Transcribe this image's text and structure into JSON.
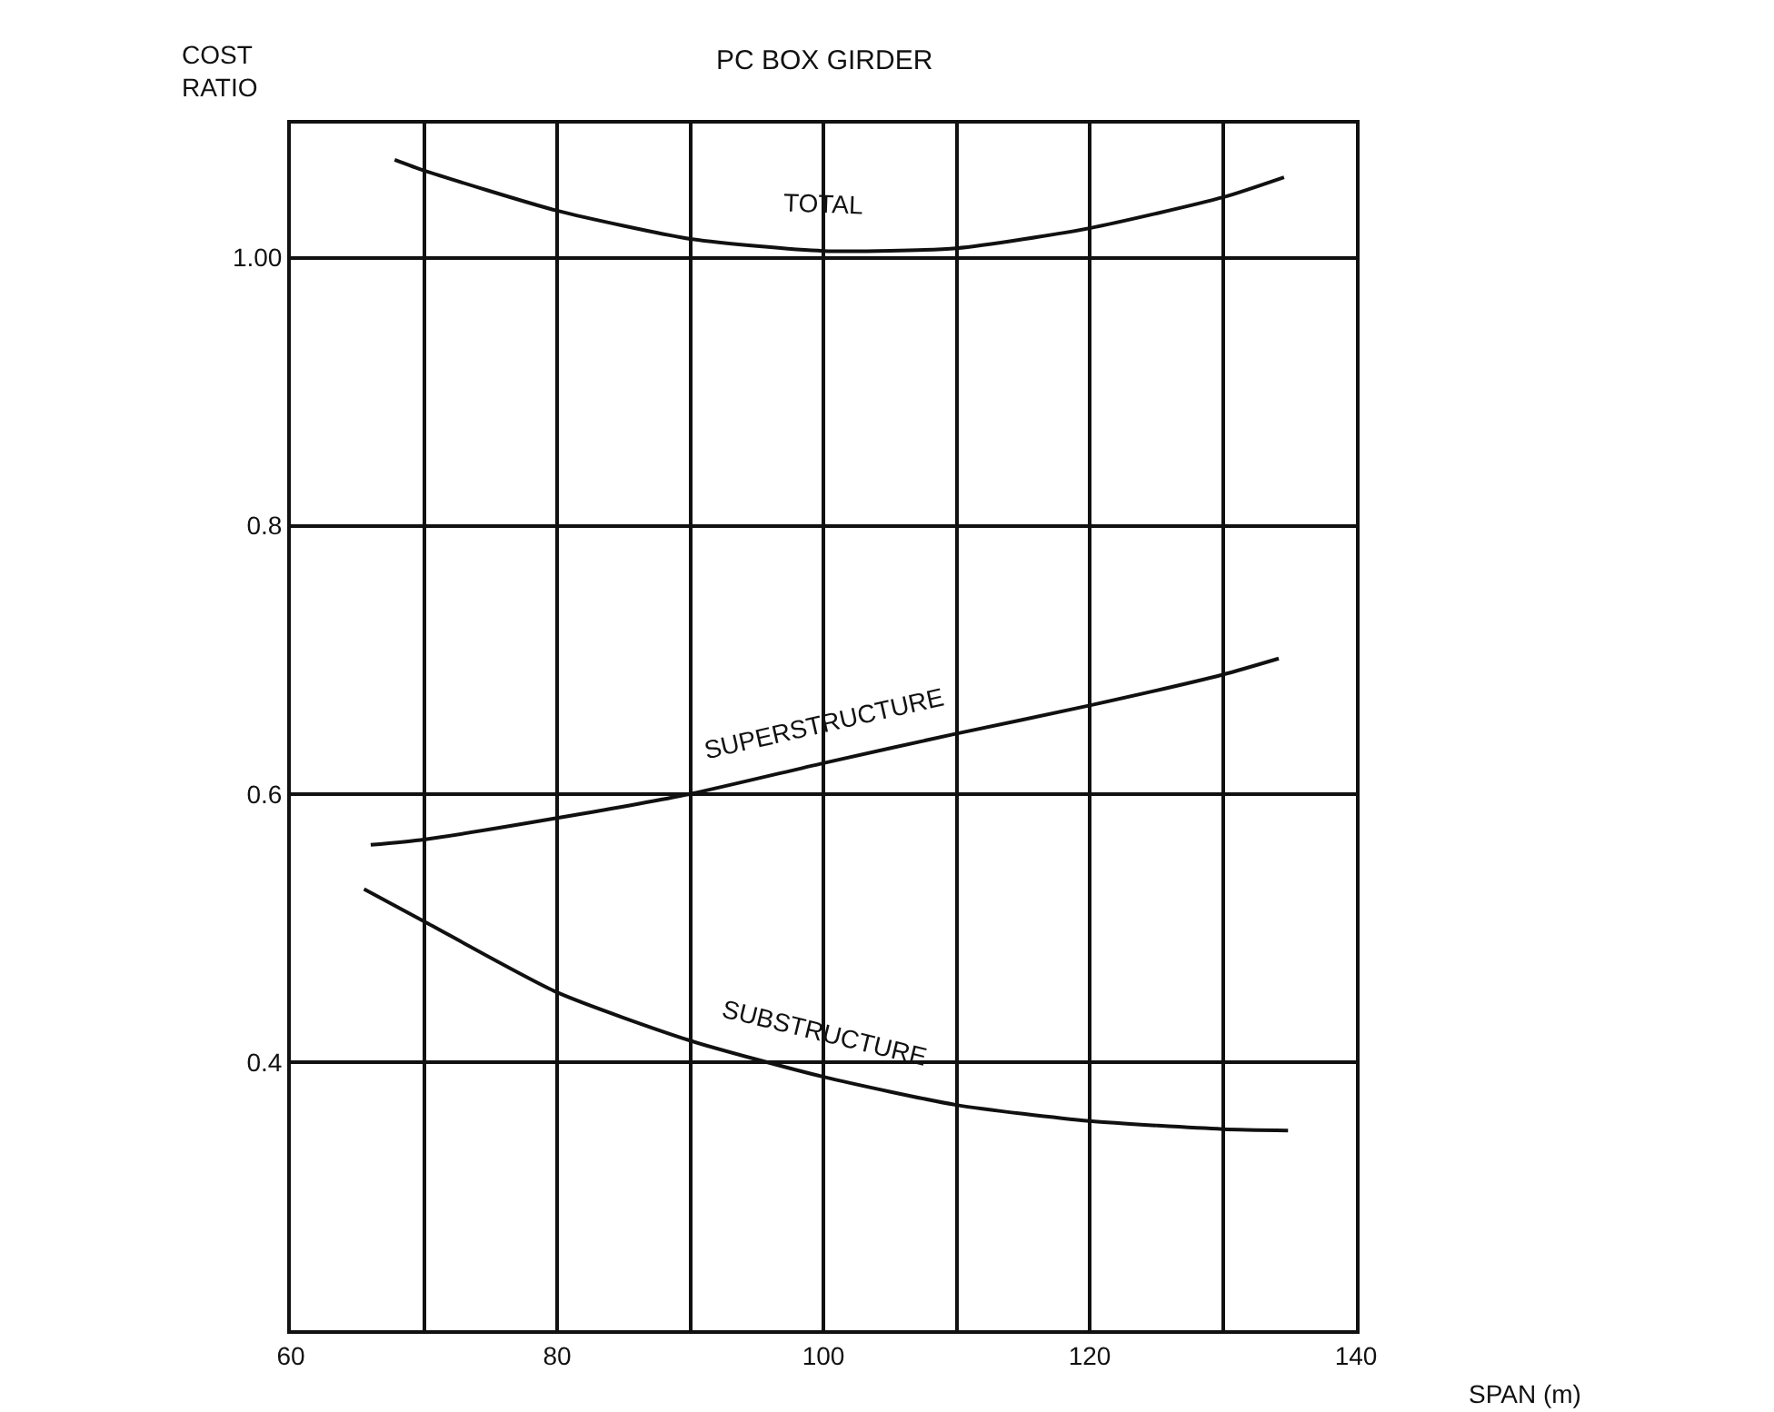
{
  "chart_data": {
    "type": "line",
    "title": "PC BOX GIRDER",
    "xlabel": "SPAN (m)",
    "ylabel": "COST\nRATIO",
    "xlim": [
      60,
      140
    ],
    "ylim": [
      0.2,
      1.1
    ],
    "xticks": [
      60,
      {
        "value": 70,
        "label": null
      },
      80,
      {
        "value": 90,
        "label": null
      },
      100,
      {
        "value": 110,
        "label": null
      },
      120,
      {
        "value": 130,
        "label": null
      },
      140
    ],
    "yticks": [
      0.4,
      0.6,
      0.8,
      {
        "value": 1.0,
        "label": "1.00"
      }
    ],
    "grid": true,
    "legend": false,
    "marker": "none",
    "line_style": "solid",
    "series": [
      {
        "name": "TOTAL",
        "color": "#111111",
        "x": [
          67.8,
          70,
          80,
          90,
          100,
          110,
          120,
          130,
          134.6
        ],
        "values": [
          1.073,
          1.065,
          1.035,
          1.014,
          1.005,
          1.007,
          1.022,
          1.045,
          1.06
        ]
      },
      {
        "name": "SUPERSTRUCTURE",
        "color": "#111111",
        "x": [
          66,
          70,
          80,
          90,
          100,
          110,
          120,
          130,
          134.2
        ],
        "values": [
          0.562,
          0.566,
          0.582,
          0.6,
          0.623,
          0.645,
          0.666,
          0.689,
          0.701
        ]
      },
      {
        "name": "SUBSTRUCTURE",
        "color": "#111111",
        "x": [
          65.5,
          70,
          80,
          90,
          100,
          110,
          120,
          130,
          134.9
        ],
        "values": [
          0.529,
          0.505,
          0.452,
          0.416,
          0.389,
          0.368,
          0.356,
          0.35,
          0.349
        ]
      }
    ]
  }
}
